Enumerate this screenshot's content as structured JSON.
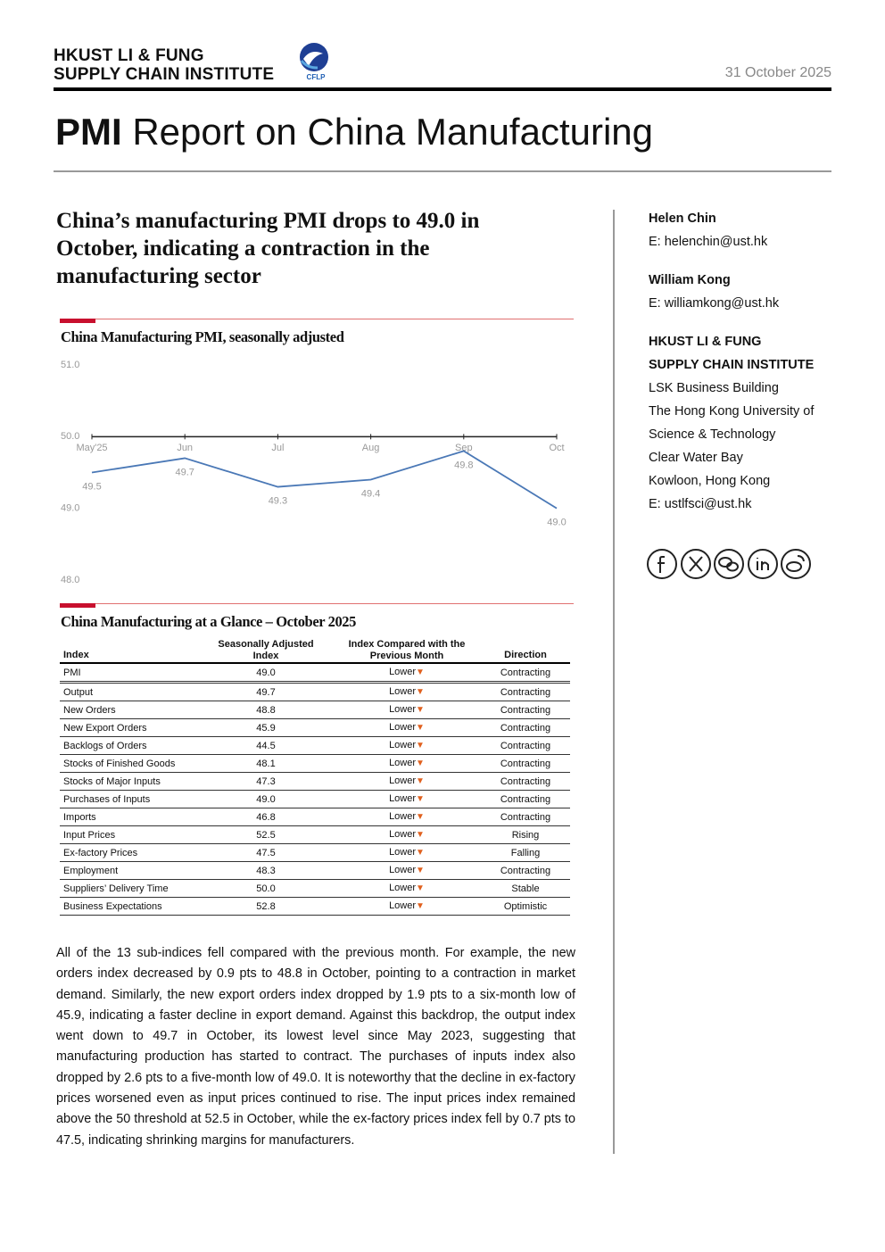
{
  "header": {
    "institute_line1": "HKUST LI & FUNG",
    "institute_line2": "SUPPLY CHAIN INSTITUTE",
    "logo_text": "CFLP",
    "date": "31 October 2025"
  },
  "report_title": {
    "bold": "PMI",
    "rest": "Report on China Manufacturing"
  },
  "headline": "China’s manufacturing PMI drops to 49.0 in October, indicating a contraction in the manufacturing sector",
  "chart_data": {
    "type": "line",
    "title": "China Manufacturing PMI, seasonally adjusted",
    "categories": [
      "May'25",
      "Jun",
      "Jul",
      "Aug",
      "Sep",
      "Oct"
    ],
    "values": [
      49.5,
      49.7,
      49.3,
      49.4,
      49.8,
      49.0
    ],
    "value_labels": [
      "49.5",
      "49.7",
      "49.3",
      "49.4",
      "49.8",
      "49.0"
    ],
    "color": "#4a78b6",
    "ylim": [
      48,
      51
    ],
    "yticks": [
      {
        "value": 51,
        "label": "51.0"
      },
      {
        "value": 50,
        "label": "50.0"
      },
      {
        "value": 49,
        "label": "49.0"
      },
      {
        "value": 48,
        "label": "48.0"
      }
    ],
    "baseline": 50,
    "grid": false
  },
  "table": {
    "title": "China Manufacturing at a Glance – October 2025",
    "columns": [
      "Index",
      "Seasonally Adjusted Index",
      "Index Compared with the Previous Month",
      "Direction"
    ],
    "rows": [
      [
        "PMI",
        "49.0",
        "Lower",
        "Contracting"
      ],
      [
        "Output",
        "49.7",
        "Lower",
        "Contracting"
      ],
      [
        "New Orders",
        "48.8",
        "Lower",
        "Contracting"
      ],
      [
        "New Export Orders",
        "45.9",
        "Lower",
        "Contracting"
      ],
      [
        "Backlogs of Orders",
        "44.5",
        "Lower",
        "Contracting"
      ],
      [
        "Stocks of Finished Goods",
        "48.1",
        "Lower",
        "Contracting"
      ],
      [
        "Stocks of Major Inputs",
        "47.3",
        "Lower",
        "Contracting"
      ],
      [
        "Purchases of Inputs",
        "49.0",
        "Lower",
        "Contracting"
      ],
      [
        "Imports",
        "46.8",
        "Lower",
        "Contracting"
      ],
      [
        "Input Prices",
        "52.5",
        "Lower",
        "Rising"
      ],
      [
        "Ex-factory Prices",
        "47.5",
        "Lower",
        "Falling"
      ],
      [
        "Employment",
        "48.3",
        "Lower",
        "Contracting"
      ],
      [
        "Suppliers’ Delivery Time",
        "50.0",
        "Lower",
        "Stable"
      ],
      [
        "Business Expectations",
        "52.8",
        "Lower",
        "Optimistic"
      ]
    ]
  },
  "paragraph": "All of the 13 sub-indices fell compared with the previous month. For example, the new orders index decreased by 0.9 pts to 48.8 in October, pointing to a contraction in market demand. Similarly, the new export orders index dropped by 1.9 pts to a six-month low of 45.9, indicating a faster decline in export demand. Against this backdrop, the output index went down to 49.7 in October, its lowest level since May 2023, suggesting that manufacturing production has started to contract. The purchases of inputs index also dropped by 2.6 pts to a five-month low of 49.0. It is noteworthy that the decline in ex-factory prices worsened even as input prices continued to rise. The input prices index remained above the 50 threshold at 52.5 in October, while the ex-factory prices index fell by 0.7 pts to 47.5, indicating shrinking margins for manufacturers.",
  "sidebar": {
    "authors": [
      {
        "name": "Helen Chin",
        "email": "E: helenchin@ust.hk"
      },
      {
        "name": "William Kong",
        "email": "E: williamkong@ust.hk"
      }
    ],
    "institute": {
      "name_line1": "HKUST LI & FUNG",
      "name_line2": "SUPPLY CHAIN INSTITUTE",
      "address": [
        "LSK Business Building",
        "The Hong Kong University of",
        "Science & Technology",
        "Clear Water Bay",
        "Kowloon, Hong Kong"
      ],
      "email": "E: ustlfsci@ust.hk"
    }
  }
}
